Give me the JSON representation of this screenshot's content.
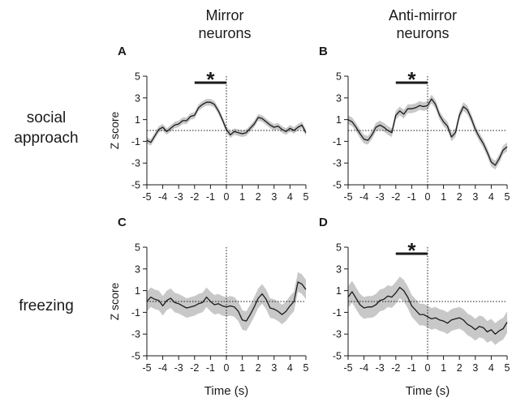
{
  "column_headers": [
    "Mirror\nneurons",
    "Anti-mirror\nneurons"
  ],
  "row_labels": [
    "social\napproach",
    "freezing"
  ],
  "chart_data": [
    {
      "type": "line",
      "panel": "A",
      "xlabel": "",
      "ylabel": "Z score",
      "xlim": [
        -5,
        5
      ],
      "ylim": [
        -5,
        5
      ],
      "xticks": [
        "-5",
        "-4",
        "-3",
        "-2",
        "-1",
        "0",
        "1",
        "2",
        "3",
        "4",
        "5"
      ],
      "yticks": [
        "5",
        "3",
        "1",
        "-1",
        "-3",
        "-5"
      ],
      "significance": {
        "x": [
          -2,
          0
        ],
        "label": "*"
      },
      "x": [
        -5,
        -4.75,
        -4.5,
        -4.25,
        -4,
        -3.75,
        -3.5,
        -3.25,
        -3,
        -2.75,
        -2.5,
        -2.25,
        -2,
        -1.75,
        -1.5,
        -1.25,
        -1,
        -0.75,
        -0.5,
        -0.25,
        0,
        0.25,
        0.5,
        0.75,
        1,
        1.25,
        1.5,
        1.75,
        2,
        2.25,
        2.5,
        2.75,
        3,
        3.25,
        3.5,
        3.75,
        4,
        4.25,
        4.5,
        4.75,
        5
      ],
      "y": [
        -0.9,
        -1.1,
        -0.5,
        0.1,
        0.3,
        -0.1,
        0.2,
        0.5,
        0.6,
        0.9,
        0.9,
        1.3,
        1.4,
        2.1,
        2.4,
        2.6,
        2.6,
        2.4,
        1.8,
        1.0,
        0.1,
        -0.4,
        -0.1,
        -0.2,
        -0.3,
        -0.2,
        0.2,
        0.6,
        1.2,
        1.1,
        0.8,
        0.5,
        0.3,
        0.4,
        0.1,
        -0.1,
        0.2,
        0.0,
        0.3,
        0.5,
        -0.2
      ],
      "sem": 0.3
    },
    {
      "type": "line",
      "panel": "B",
      "xlabel": "",
      "ylabel": "",
      "xlim": [
        -5,
        5
      ],
      "ylim": [
        -5,
        5
      ],
      "xticks": [
        "-5",
        "-4",
        "-3",
        "-2",
        "-1",
        "0",
        "1",
        "2",
        "3",
        "4",
        "5"
      ],
      "yticks": [
        "5",
        "3",
        "1",
        "-1",
        "-3",
        "-5"
      ],
      "significance": {
        "x": [
          -2,
          0
        ],
        "label": "*"
      },
      "x": [
        -5,
        -4.75,
        -4.5,
        -4.25,
        -4,
        -3.75,
        -3.5,
        -3.25,
        -3,
        -2.75,
        -2.5,
        -2.25,
        -2,
        -1.75,
        -1.5,
        -1.25,
        -1,
        -0.75,
        -0.5,
        -0.25,
        0,
        0.25,
        0.5,
        0.75,
        1,
        1.25,
        1.5,
        1.75,
        2,
        2.25,
        2.5,
        2.75,
        3,
        3.25,
        3.5,
        3.75,
        4,
        4.25,
        4.5,
        4.75,
        5
      ],
      "y": [
        1.0,
        0.8,
        0.3,
        -0.3,
        -0.8,
        -0.9,
        -0.4,
        0.3,
        0.5,
        0.3,
        0.0,
        -0.2,
        1.4,
        1.8,
        1.5,
        2.0,
        2.0,
        2.1,
        2.3,
        2.2,
        2.3,
        2.9,
        2.4,
        1.4,
        0.8,
        0.4,
        -0.6,
        -0.2,
        1.4,
        2.2,
        1.9,
        1.1,
        0.1,
        -0.6,
        -1.2,
        -2.0,
        -2.9,
        -3.2,
        -2.6,
        -1.8,
        -1.5
      ],
      "sem": 0.4
    },
    {
      "type": "line",
      "panel": "C",
      "xlabel": "Time (s)",
      "ylabel": "Z score",
      "xlim": [
        -5,
        5
      ],
      "ylim": [
        -5,
        5
      ],
      "xticks": [
        "-5",
        "-4",
        "-3",
        "-2",
        "-1",
        "0",
        "1",
        "2",
        "3",
        "4",
        "5"
      ],
      "yticks": [
        "5",
        "3",
        "1",
        "-1",
        "-3",
        "-5"
      ],
      "significance": null,
      "x": [
        -5,
        -4.75,
        -4.5,
        -4.25,
        -4,
        -3.75,
        -3.5,
        -3.25,
        -3,
        -2.75,
        -2.5,
        -2.25,
        -2,
        -1.75,
        -1.5,
        -1.25,
        -1,
        -0.75,
        -0.5,
        -0.25,
        0,
        0.25,
        0.5,
        0.75,
        1,
        1.25,
        1.5,
        1.75,
        2,
        2.25,
        2.5,
        2.75,
        3,
        3.25,
        3.5,
        3.75,
        4,
        4.25,
        4.5,
        4.75,
        5
      ],
      "y": [
        0.0,
        0.4,
        0.2,
        0.1,
        -0.4,
        0.1,
        0.3,
        -0.1,
        -0.2,
        -0.4,
        -0.6,
        -0.5,
        -0.4,
        -0.2,
        -0.1,
        0.4,
        0.0,
        -0.3,
        -0.2,
        -0.4,
        -0.5,
        -0.4,
        -0.5,
        -0.9,
        -1.7,
        -1.8,
        -1.2,
        -0.5,
        0.3,
        0.7,
        0.2,
        -0.6,
        -0.7,
        -0.9,
        -1.2,
        -0.9,
        -0.4,
        0.0,
        1.8,
        1.6,
        1.1
      ],
      "sem": 0.9
    },
    {
      "type": "line",
      "panel": "D",
      "xlabel": "Time (s)",
      "ylabel": "",
      "xlim": [
        -5,
        5
      ],
      "ylim": [
        -5,
        5
      ],
      "xticks": [
        "-5",
        "-4",
        "-3",
        "-2",
        "-1",
        "0",
        "1",
        "2",
        "3",
        "4",
        "5"
      ],
      "yticks": [
        "5",
        "3",
        "1",
        "-1",
        "-3",
        "-5"
      ],
      "significance": {
        "x": [
          -2,
          0
        ],
        "label": "*"
      },
      "x": [
        -5,
        -4.75,
        -4.5,
        -4.25,
        -4,
        -3.75,
        -3.5,
        -3.25,
        -3,
        -2.75,
        -2.5,
        -2.25,
        -2,
        -1.75,
        -1.5,
        -1.25,
        -1,
        -0.75,
        -0.5,
        -0.25,
        0,
        0.25,
        0.5,
        0.75,
        1,
        1.25,
        1.5,
        1.75,
        2,
        2.25,
        2.5,
        2.75,
        3,
        3.25,
        3.5,
        3.75,
        4,
        4.25,
        4.5,
        4.75,
        5
      ],
      "y": [
        0.4,
        0.9,
        0.3,
        -0.3,
        -0.6,
        -0.5,
        -0.5,
        -0.3,
        0.1,
        0.2,
        0.5,
        0.4,
        0.8,
        1.3,
        1.0,
        0.4,
        -0.4,
        -0.8,
        -1.2,
        -1.2,
        -1.4,
        -1.6,
        -1.5,
        -1.7,
        -1.8,
        -2.0,
        -1.7,
        -1.6,
        -1.5,
        -1.7,
        -2.1,
        -2.3,
        -2.6,
        -2.3,
        -2.4,
        -2.8,
        -2.6,
        -3.0,
        -2.7,
        -2.5,
        -1.9
      ],
      "sem": 1.0
    }
  ]
}
